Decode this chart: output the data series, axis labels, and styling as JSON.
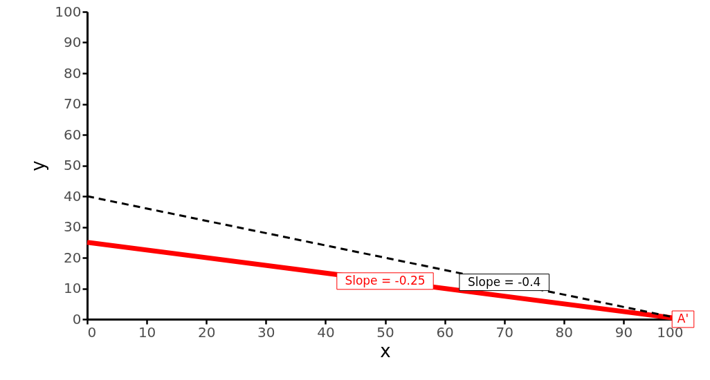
{
  "chart_data": {
    "type": "line",
    "xlabel": "x",
    "ylabel": "y",
    "x": [
      0,
      100
    ],
    "series": [
      {
        "color": "#ff0000",
        "values": [
          25,
          0
        ],
        "line_style": "solid"
      },
      {
        "color": "#000000",
        "values": [
          40,
          0
        ],
        "line_style": "dashed"
      }
    ],
    "xlim": [
      0,
      100
    ],
    "ylim": [
      0,
      100
    ],
    "xticks": [
      0,
      10,
      20,
      30,
      40,
      50,
      60,
      70,
      80,
      90,
      100
    ],
    "yticks": [
      0,
      10,
      20,
      30,
      40,
      50,
      60,
      70,
      80,
      90,
      100
    ],
    "annotations": [
      {
        "text": "Slope = -0.25",
        "x": 50,
        "y": 12.4
      },
      {
        "text": "Slope = -0.4",
        "x": 70,
        "y": 12
      },
      {
        "text": "A'",
        "x": 100,
        "y": 0
      }
    ]
  }
}
